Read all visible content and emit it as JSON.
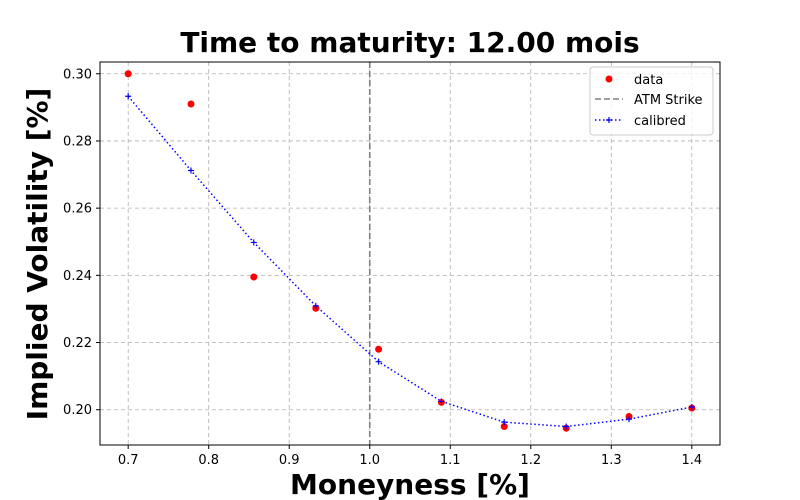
{
  "chart_data": {
    "type": "scatter",
    "title": "Time to maturity: 12.00 mois",
    "xlabel": "Moneyness [%]",
    "ylabel": "Implied Volatility [%]",
    "xlim": [
      0.665,
      1.435
    ],
    "ylim": [
      0.1895,
      0.3035
    ],
    "xticks": [
      0.7,
      0.8,
      0.9,
      1.0,
      1.1,
      1.2,
      1.3,
      1.4
    ],
    "xtick_labels": [
      "0.7",
      "0.8",
      "0.9",
      "1.0",
      "1.1",
      "1.2",
      "1.3",
      "1.4"
    ],
    "yticks": [
      0.2,
      0.22,
      0.24,
      0.26,
      0.28,
      0.3
    ],
    "ytick_labels": [
      "0.20",
      "0.22",
      "0.24",
      "0.26",
      "0.28",
      "0.30"
    ],
    "grid": true,
    "legend_position": "top-right",
    "atm_strike": 1.0,
    "series": [
      {
        "name": "data",
        "kind": "scatter",
        "color": "#ff0000",
        "x": [
          0.7,
          0.778,
          0.856,
          0.933,
          1.011,
          1.089,
          1.167,
          1.244,
          1.322,
          1.4
        ],
        "y": [
          0.3,
          0.291,
          0.2395,
          0.2302,
          0.218,
          0.2022,
          0.195,
          0.1945,
          0.198,
          0.2005
        ]
      },
      {
        "name": "ATM Strike",
        "kind": "vline",
        "color": "#808080"
      },
      {
        "name": "calibred",
        "kind": "line",
        "color": "#0000ff",
        "x": [
          0.7,
          0.778,
          0.856,
          0.933,
          1.011,
          1.089,
          1.167,
          1.244,
          1.322,
          1.4
        ],
        "y": [
          0.2933,
          0.2712,
          0.2498,
          0.2309,
          0.2143,
          0.2025,
          0.1963,
          0.195,
          0.1972,
          0.2008
        ]
      }
    ]
  }
}
